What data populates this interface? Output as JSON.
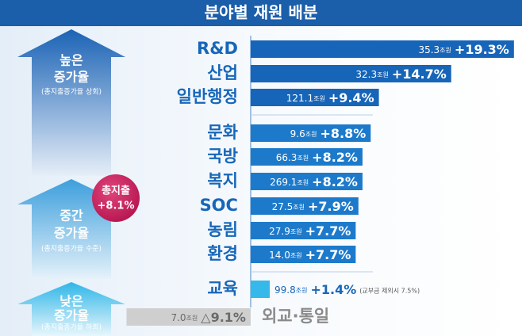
{
  "chart_data": {
    "type": "bar",
    "orientation": "horizontal",
    "title": "분야별 재원 배분",
    "categories": [
      "R&D",
      "산업",
      "일반행정",
      "문화",
      "국방",
      "복지",
      "SOC",
      "농림",
      "환경",
      "교육",
      "외교·통일"
    ],
    "values": [
      19.3,
      14.7,
      9.4,
      8.8,
      8.2,
      8.2,
      7.9,
      7.7,
      7.7,
      1.4,
      -9.1
    ],
    "value_labels": [
      "+19.3%",
      "+14.7%",
      "+9.4%",
      "+8.8%",
      "+8.2%",
      "+8.2%",
      "+7.9%",
      "+7.7%",
      "+7.7%",
      "+1.4%",
      "△9.1%"
    ],
    "amounts": [
      "35.3",
      "32.3",
      "121.1",
      "9.6",
      "66.3",
      "269.1",
      "27.5",
      "27.9",
      "14.0",
      "99.8",
      "7.0"
    ],
    "amount_unit": "조원",
    "colors": [
      "#1765b8",
      "#1765b8",
      "#1765b8",
      "#1d7acb",
      "#1d7acb",
      "#1d7acb",
      "#1d7acb",
      "#1d7acb",
      "#1d7acb",
      "#35b9ea",
      "#cfcfcf"
    ],
    "xlim": [
      -9.5,
      19.6
    ],
    "note": "(교부금 제외시 7.5%)",
    "groups": [
      {
        "lines": [
          "높은",
          "증가율"
        ],
        "sub": "(총지출증가율 상회)"
      },
      {
        "lines": [
          "중간",
          "증가율"
        ],
        "sub": "(총지출증가율 수준)"
      },
      {
        "lines": [
          "낮은",
          "증가율"
        ],
        "sub": "(총지출증가율 하회)"
      }
    ],
    "total": {
      "label": "총지출",
      "value_label": "+8.1%"
    }
  }
}
